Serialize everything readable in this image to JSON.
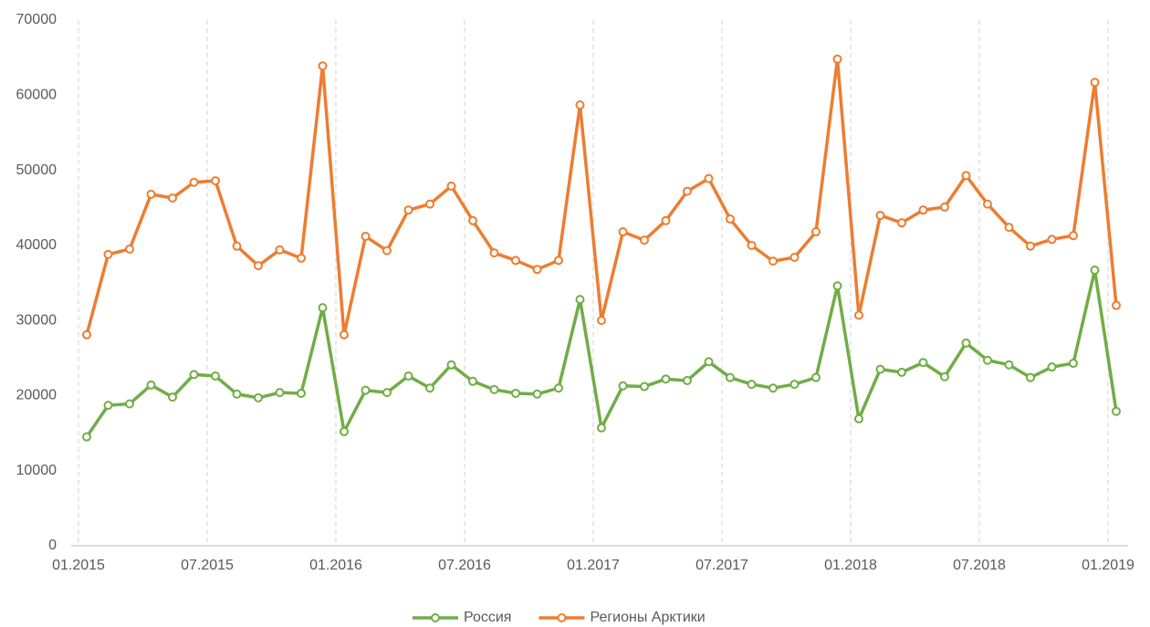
{
  "chart_data": {
    "type": "line",
    "categories": [
      "01.2015",
      null,
      null,
      null,
      null,
      null,
      "07.2015",
      null,
      null,
      null,
      null,
      null,
      "01.2016",
      null,
      null,
      null,
      null,
      null,
      "07.2016",
      null,
      null,
      null,
      null,
      null,
      "01.2017",
      null,
      null,
      null,
      null,
      null,
      "07.2017",
      null,
      null,
      null,
      null,
      null,
      "01.2018",
      null,
      null,
      null,
      null,
      null,
      "07.2018",
      null,
      null,
      null,
      null,
      null,
      "01.2019"
    ],
    "series": [
      {
        "name": "Россия",
        "color": "#70ad47",
        "values": [
          14500,
          18700,
          18900,
          21400,
          19800,
          22800,
          22600,
          20200,
          19700,
          20400,
          20300,
          31700,
          15200,
          20700,
          20400,
          22600,
          21000,
          24100,
          21900,
          20800,
          20300,
          20200,
          21000,
          32800,
          15700,
          21300,
          21200,
          22200,
          22000,
          24500,
          22400,
          21500,
          21000,
          21500,
          22400,
          34600,
          16900,
          23500,
          23100,
          24400,
          22500,
          27000,
          24700,
          24100,
          22400,
          23800,
          24300,
          36700,
          17900
        ]
      },
      {
        "name": "Регионы Арктики",
        "color": "#ed7d31",
        "values": [
          28100,
          38800,
          39500,
          46800,
          46300,
          48400,
          48600,
          39900,
          37300,
          39400,
          38300,
          63900,
          28100,
          41200,
          39300,
          44700,
          45500,
          47900,
          43300,
          39000,
          38000,
          36800,
          38000,
          58700,
          30000,
          41800,
          40700,
          43300,
          47200,
          48900,
          43500,
          40000,
          37900,
          38400,
          41800,
          64800,
          30700,
          44000,
          43000,
          44700,
          45100,
          49300,
          45500,
          42400,
          39900,
          40800,
          41300,
          61700,
          32000
        ]
      }
    ],
    "ylim": [
      0,
      70000
    ],
    "yticks": [
      0,
      10000,
      20000,
      30000,
      40000,
      50000,
      60000,
      70000
    ],
    "grid": true,
    "legend": "bottom"
  }
}
